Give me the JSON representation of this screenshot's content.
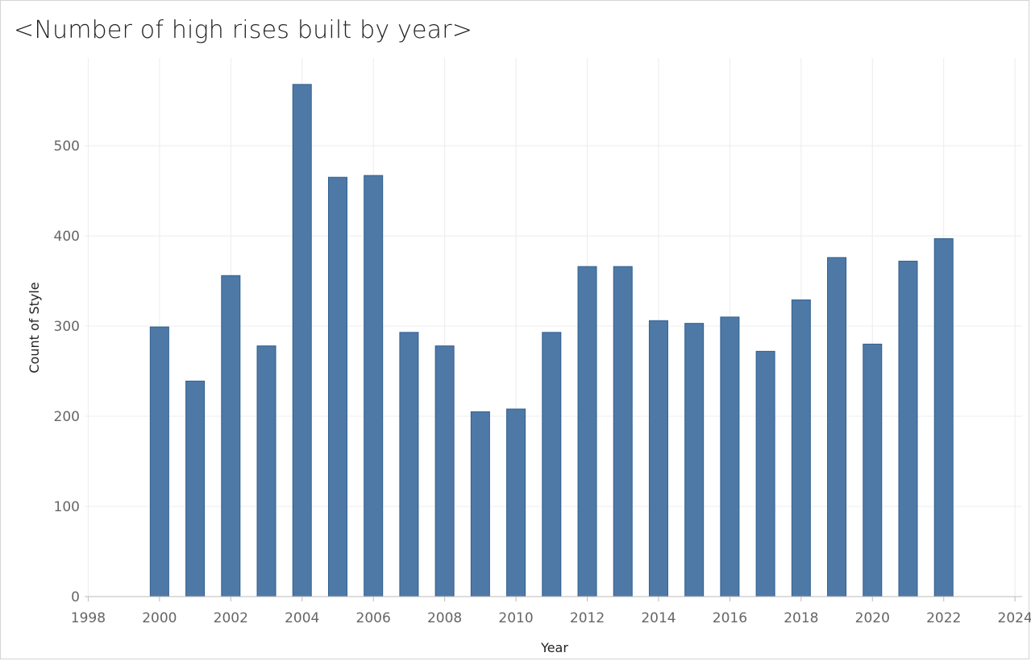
{
  "chart_data": {
    "type": "bar",
    "title": "<Number of high rises built by year>",
    "xlabel": "Year",
    "ylabel": "Count of Style",
    "x": [
      2000,
      2001,
      2002,
      2003,
      2004,
      2005,
      2006,
      2007,
      2008,
      2009,
      2010,
      2011,
      2012,
      2013,
      2014,
      2015,
      2016,
      2017,
      2018,
      2019,
      2020,
      2021,
      2022
    ],
    "values": [
      299,
      239,
      356,
      278,
      568,
      465,
      467,
      293,
      278,
      205,
      208,
      293,
      366,
      366,
      306,
      303,
      310,
      272,
      329,
      376,
      280,
      372,
      397
    ],
    "xlim": [
      1997.9,
      2024.2
    ],
    "ylim": [
      0,
      580
    ],
    "x_ticks": [
      1998,
      2000,
      2002,
      2004,
      2006,
      2008,
      2010,
      2012,
      2014,
      2016,
      2018,
      2020,
      2022,
      2024
    ],
    "x_tick_labels": [
      "1998",
      "2000",
      "2002",
      "2004",
      "2006",
      "2008",
      "2010",
      "2012",
      "2014",
      "2016",
      "2018",
      "2020",
      "2022",
      "2024"
    ],
    "y_ticks": [
      0,
      100,
      200,
      300,
      400,
      500
    ],
    "y_tick_labels": [
      "0",
      "100",
      "200",
      "300",
      "400",
      "500"
    ],
    "grid": true,
    "bar_color": "#4e79a7",
    "bar_edge_color": "#2f5f8f",
    "grid_color": "#ececec"
  }
}
